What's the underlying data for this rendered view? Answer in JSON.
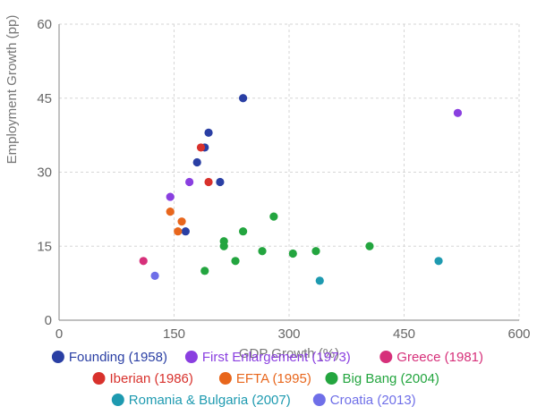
{
  "chart_data": {
    "type": "scatter",
    "title": "",
    "xlabel": "GDP Growth (%)",
    "ylabel": "Employment Growth (pp)",
    "xlim": [
      0,
      600
    ],
    "ylim": [
      0,
      60
    ],
    "xticks": [
      0,
      150,
      300,
      450,
      600
    ],
    "yticks": [
      0,
      15,
      30,
      45,
      60
    ],
    "grid": true,
    "legend_position": "bottom",
    "series": [
      {
        "name": "Founding (1958)",
        "color": "#2a3fa4",
        "points": [
          {
            "x": 165,
            "y": 18
          },
          {
            "x": 180,
            "y": 32
          },
          {
            "x": 190,
            "y": 35
          },
          {
            "x": 195,
            "y": 38
          },
          {
            "x": 210,
            "y": 28
          },
          {
            "x": 240,
            "y": 45
          }
        ]
      },
      {
        "name": "First Enlargement (1973)",
        "color": "#8a3fe0",
        "points": [
          {
            "x": 145,
            "y": 25
          },
          {
            "x": 170,
            "y": 28
          },
          {
            "x": 520,
            "y": 42
          }
        ]
      },
      {
        "name": "Greece (1981)",
        "color": "#d6307a",
        "points": [
          {
            "x": 110,
            "y": 12
          }
        ]
      },
      {
        "name": "Iberian (1986)",
        "color": "#d8312c",
        "points": [
          {
            "x": 185,
            "y": 35
          },
          {
            "x": 195,
            "y": 28
          }
        ]
      },
      {
        "name": "EFTA (1995)",
        "color": "#e8661c",
        "points": [
          {
            "x": 145,
            "y": 22
          },
          {
            "x": 155,
            "y": 18
          },
          {
            "x": 160,
            "y": 20
          }
        ]
      },
      {
        "name": "Big Bang (2004)",
        "color": "#23a53f",
        "points": [
          {
            "x": 190,
            "y": 10
          },
          {
            "x": 215,
            "y": 15
          },
          {
            "x": 215,
            "y": 16
          },
          {
            "x": 230,
            "y": 12
          },
          {
            "x": 240,
            "y": 18
          },
          {
            "x": 265,
            "y": 14
          },
          {
            "x": 280,
            "y": 21
          },
          {
            "x": 305,
            "y": 13.5
          },
          {
            "x": 335,
            "y": 14
          },
          {
            "x": 405,
            "y": 15
          }
        ]
      },
      {
        "name": "Romania & Bulgaria (2007)",
        "color": "#1e9ab0",
        "points": [
          {
            "x": 340,
            "y": 8
          },
          {
            "x": 495,
            "y": 12
          }
        ]
      },
      {
        "name": "Croatia (2013)",
        "color": "#6f6fe8",
        "points": [
          {
            "x": 125,
            "y": 9
          }
        ]
      }
    ]
  }
}
